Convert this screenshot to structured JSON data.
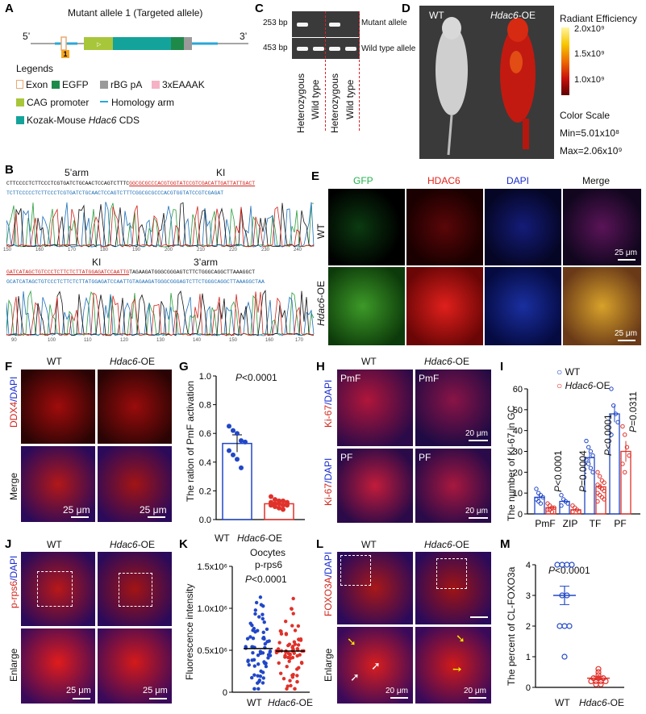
{
  "panel_letters": {
    "A": "A",
    "B": "B",
    "C": "C",
    "D": "D",
    "E": "E",
    "F": "F",
    "G": "G",
    "H": "H",
    "I": "I",
    "J": "J",
    "K": "K",
    "L": "L",
    "M": "M"
  },
  "A": {
    "title": "Mutant allele 1 (Targeted allele)",
    "end5": "5’",
    "end3": "3’",
    "exon_num": "1",
    "legends_title": "Legends",
    "items": [
      {
        "label": "Exon",
        "color": "#e9a974",
        "outline": true
      },
      {
        "label": "EGFP",
        "color": "#1e8a4a"
      },
      {
        "label": "rBG pA",
        "color": "#9a9a9a"
      },
      {
        "label": "3xEAAAK",
        "color": "#f4b2c4"
      },
      {
        "label": "CAG promoter",
        "color": "#a8c63a"
      },
      {
        "label": "Homology arm",
        "color": "#2aa7d8",
        "line": true
      },
      {
        "label_pre": "Kozak-Mouse ",
        "label_it": "Hdac6",
        "label_post": " CDS",
        "color": "#13a39b"
      }
    ]
  },
  "B": {
    "row1_labels": [
      "5’arm",
      "KI"
    ],
    "row2_labels": [
      "KI",
      "3’arm"
    ],
    "seq1_top": "CTTCCCCTCTTCCCTCGTGATCTGCAACTCCAGTCTTTC",
    "seq1_top_ul": "GGCGCGCCCACGTGGTATCCGTCGACATTGATTATTGACT",
    "seq1_bot": "TCTTCCCCCTCTTCCCTCGTGATCTGCAACTCCAGTCTTTCGGCGCGCCCACGTGGTATCCGTCGAGAT",
    "seq2_top_ul": "GATCATAGCTGTCCCTCTTCTCTTATGGAGATCCAATTG",
    "seq2_top": "TAGAAGATGGGCGGGAGTCTTCTGGGCAGGCTTAAAGGCT",
    "seq2_bot": "GCATCATAGCTGTCCCTCTTCTCTTATGGAGATCCAATTGTAGAAGATGGGCGGGAGTCTTCTGGGCAGGCTTAAAGGCTAA",
    "ticks1": [
      "150",
      "160",
      "170",
      "180",
      "190",
      "200",
      "210",
      "220",
      "230",
      "240"
    ],
    "ticks2": [
      "90",
      "100",
      "110",
      "120",
      "130",
      "140",
      "150",
      "160",
      "170"
    ]
  },
  "C": {
    "bp_top": "253 bp",
    "bp_bot": "453 bp",
    "band_top": "Mutant allele",
    "band_bot": "Wild type allele",
    "lanes": [
      "Heterozygous",
      "Wild type",
      "Heterozygous",
      "Wild type"
    ]
  },
  "D": {
    "wt": "WT",
    "oe_it": "Hdac6",
    "oe_post": "-OE",
    "title": "Radiant Efficiency",
    "ticks": [
      "2.0x10⁹",
      "1.5x10⁹",
      "1.0x10⁹"
    ],
    "color_scale": "Color Scale",
    "min": "Min=5.01x10⁸",
    "max": "Max=2.06x10⁹"
  },
  "E": {
    "cols": [
      {
        "label": "GFP",
        "color": "#22b14c"
      },
      {
        "label": "HDAC6",
        "color": "#e2231a"
      },
      {
        "label": "DAPI",
        "color": "#1a2ccf"
      },
      {
        "label": "Merge",
        "color": "#111111"
      }
    ],
    "rows": [
      {
        "pre": "WT",
        "it": ""
      },
      {
        "pre": "",
        "it": "Hdac6",
        "post": "-OE"
      }
    ],
    "scale": "25 μm"
  },
  "F": {
    "wt": "WT",
    "oe_it": "Hdac6",
    "oe_post": "-OE",
    "row1_a": "DDX4",
    "row1_b": "/DAPI",
    "row2": "Merge",
    "scale": "25 μm"
  },
  "G": {
    "ptext_it": "P",
    "ptext": "<0.0001",
    "ylabel": "The ration of PmF activation",
    "yticks": [
      "0.0",
      "0.2",
      "0.4",
      "0.6",
      "0.8",
      "1.0"
    ],
    "xticks": [
      {
        "pre": "WT"
      },
      {
        "it": "Hdac6",
        "post": "-OE"
      }
    ]
  },
  "H": {
    "wt": "WT",
    "oe_it": "Hdac6",
    "oe_post": "-OE",
    "row_a": "Ki-67",
    "row_b": "/DAPI",
    "tags": [
      "PmF",
      "PmF",
      "PF",
      "PF"
    ],
    "scale": "20 μm"
  },
  "I": {
    "legend": [
      {
        "pre": "WT"
      },
      {
        "it": "Hdac6",
        "post": "-OE"
      }
    ],
    "ylabel": "The number of Ki-67 in GC",
    "yticks": [
      "0",
      "10",
      "20",
      "30",
      "40",
      "50",
      "60"
    ],
    "groups": [
      "PmF",
      "ZIP",
      "TF",
      "PF"
    ],
    "pvals": [
      {
        "it": "P",
        "txt": "<0.0001"
      },
      {
        "it": "P",
        "txt": "=0.0004"
      },
      {
        "it": "P",
        "txt": "<0.0001"
      },
      {
        "it": "P",
        "txt": "=0.0311"
      }
    ]
  },
  "J": {
    "wt": "WT",
    "oe_it": "Hdac6",
    "oe_post": "-OE",
    "row_a": "p-rps6",
    "row_b": "/DAPI",
    "row2": "Enlarge",
    "scale": "25 μm"
  },
  "K": {
    "title1": "Oocytes",
    "title2": "p-rps6",
    "ptext_it": "P",
    "ptext": "<0.0001",
    "ylabel": "Fluorescence intensity",
    "yticks": [
      "1.5x10⁶",
      "1.0x10⁶",
      "0.5x10⁶",
      "0"
    ],
    "xticks": [
      {
        "pre": "WT"
      },
      {
        "it": "Hdac6",
        "post": "-OE"
      }
    ]
  },
  "L": {
    "wt": "WT",
    "oe_it": "Hdac6",
    "oe_post": "-OE",
    "row_a": "FOXO3A",
    "row_b": "/DAPI",
    "row2": "Enlarge",
    "scale": "20 μm"
  },
  "M": {
    "ptext_it": "P",
    "ptext": "<0.0001",
    "ylabel": "The percent of CL-FOXO3a",
    "yticks": [
      "0",
      "1",
      "2",
      "3",
      "4"
    ],
    "xticks": [
      {
        "pre": "WT"
      },
      {
        "it": "Hdac6",
        "post": "-OE"
      }
    ]
  },
  "chart_data": [
    {
      "panel": "G",
      "type": "bar",
      "categories": [
        "WT",
        "Hdac6-OE"
      ],
      "values": [
        0.53,
        0.11
      ],
      "errors": [
        0.06,
        0.02
      ],
      "points": [
        [
          0.65,
          0.62,
          0.6,
          0.55,
          0.54,
          0.48,
          0.45,
          0.42,
          0.36
        ],
        [
          0.16,
          0.14,
          0.13,
          0.13,
          0.12,
          0.12,
          0.11,
          0.11,
          0.1,
          0.1,
          0.1,
          0.09,
          0.08,
          0.07
        ]
      ],
      "ylabel": "The ration of PmF activation",
      "ylim": [
        0,
        1.0
      ],
      "annotation": "P<0.0001"
    },
    {
      "panel": "I",
      "type": "bar",
      "categories": [
        "PmF",
        "ZIP",
        "TF",
        "PF"
      ],
      "series": [
        {
          "name": "WT",
          "values": [
            8,
            6,
            27,
            48
          ],
          "errors": [
            1.2,
            1.0,
            2.5,
            4
          ]
        },
        {
          "name": "Hdac6-OE",
          "values": [
            3,
            2,
            13,
            30
          ],
          "errors": [
            0.6,
            0.6,
            1.5,
            5
          ]
        }
      ],
      "points": {
        "WT": [
          [
            12,
            10,
            9,
            8,
            7,
            6,
            5
          ],
          [
            9,
            7,
            6,
            5,
            4
          ],
          [
            35,
            32,
            30,
            28,
            26,
            24,
            22,
            20
          ],
          [
            60,
            52,
            48,
            44,
            38
          ]
        ],
        "Hdac6-OE": [
          [
            5,
            4,
            3,
            3,
            2,
            2,
            1
          ],
          [
            4,
            3,
            2,
            1,
            1
          ],
          [
            20,
            18,
            16,
            15,
            14,
            13,
            12,
            11,
            10,
            9,
            8,
            7,
            6
          ],
          [
            42,
            38,
            32,
            28,
            24,
            20
          ]
        ]
      },
      "ylabel": "The number of Ki-67 in GC",
      "ylim": [
        0,
        60
      ],
      "annotations": [
        "P<0.0001",
        "P=0.0004",
        "P<0.0001",
        "P=0.0311"
      ]
    },
    {
      "panel": "K",
      "type": "scatter",
      "categories": [
        "WT",
        "Hdac6-OE"
      ],
      "medians": [
        520000,
        490000
      ],
      "ylabel": "Fluorescence intensity",
      "ylim": [
        0,
        1500000
      ],
      "annotation": "P<0.0001"
    },
    {
      "panel": "M",
      "type": "scatter",
      "categories": [
        "WT",
        "Hdac6-OE"
      ],
      "values": [
        3.0,
        0.3
      ],
      "errors": [
        0.3,
        0.05
      ],
      "points": [
        [
          4,
          4,
          4,
          4,
          3,
          3,
          2,
          2,
          2,
          1
        ],
        [
          0.6,
          0.5,
          0.4,
          0.3,
          0.3,
          0.3,
          0.2,
          0.2,
          0.2,
          0.2,
          0.1,
          0.1
        ]
      ],
      "ylabel": "The percent of CL-FOXO3a",
      "ylim": [
        0,
        4
      ],
      "annotation": "P<0.0001"
    }
  ]
}
